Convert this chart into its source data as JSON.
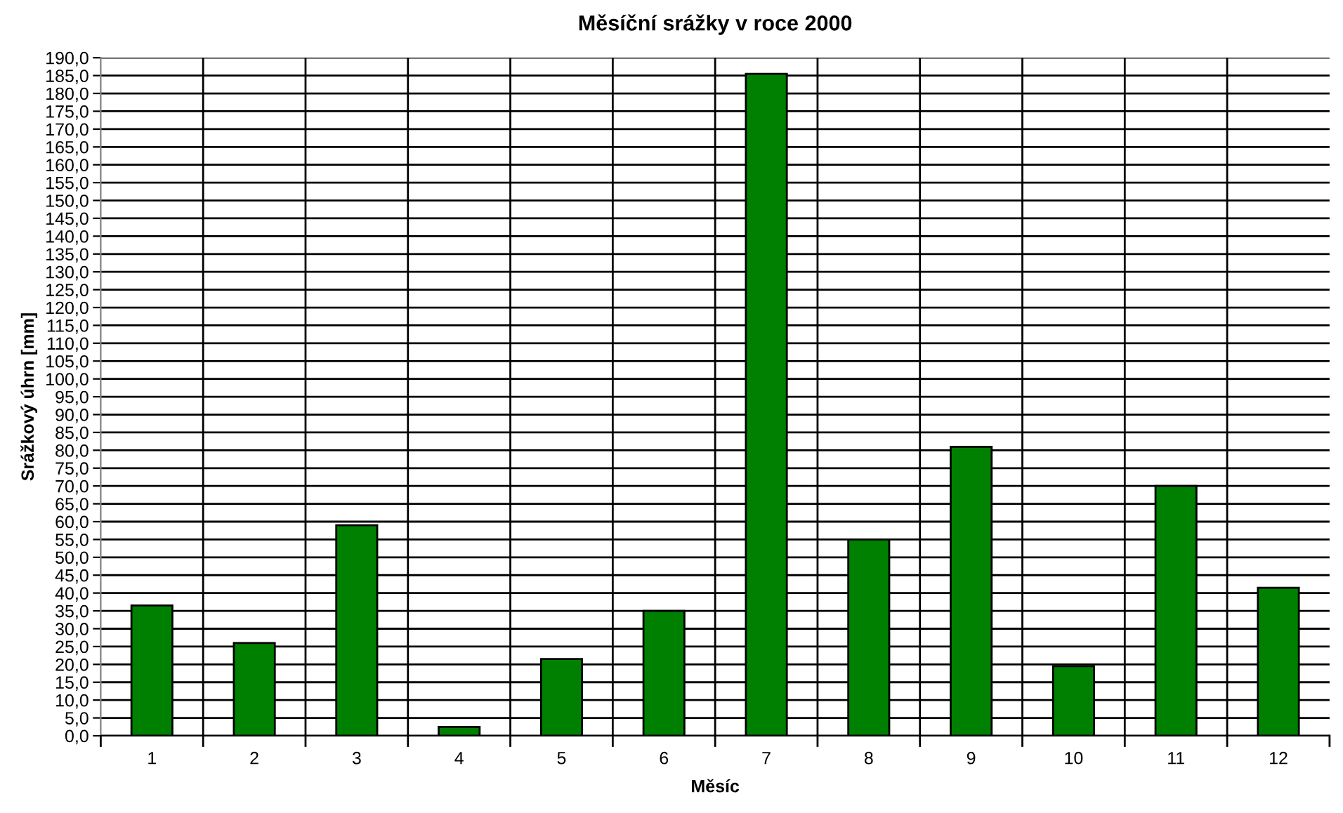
{
  "chart_data": {
    "type": "bar",
    "title": "Měsíční srážky v roce 2000",
    "xlabel": "Měsíc",
    "ylabel": "Srážkový úhrn [mm]",
    "categories": [
      "1",
      "2",
      "3",
      "4",
      "5",
      "6",
      "7",
      "8",
      "9",
      "10",
      "11",
      "12"
    ],
    "values": [
      36.5,
      26,
      59,
      2.5,
      21.5,
      35,
      185.5,
      55,
      81,
      19.5,
      70,
      41.5
    ],
    "color": "#008000",
    "ylim": [
      0,
      190
    ],
    "yticks": [
      {
        "value": 0,
        "label": "0,0"
      },
      {
        "value": 5,
        "label": "5,0"
      },
      {
        "value": 10,
        "label": "10,0"
      },
      {
        "value": 15,
        "label": "15,0"
      },
      {
        "value": 20,
        "label": "20,0"
      },
      {
        "value": 25,
        "label": "25,0"
      },
      {
        "value": 30,
        "label": "30,0"
      },
      {
        "value": 35,
        "label": "35,0"
      },
      {
        "value": 40,
        "label": "40,0"
      },
      {
        "value": 45,
        "label": "45,0"
      },
      {
        "value": 50,
        "label": "50,0"
      },
      {
        "value": 55,
        "label": "55,0"
      },
      {
        "value": 60,
        "label": "60,0"
      },
      {
        "value": 65,
        "label": "65,0"
      },
      {
        "value": 70,
        "label": "70,0"
      },
      {
        "value": 75,
        "label": "75,0"
      },
      {
        "value": 80,
        "label": "80,0"
      },
      {
        "value": 85,
        "label": "85,0"
      },
      {
        "value": 90,
        "label": "90,0"
      },
      {
        "value": 95,
        "label": "95,0"
      },
      {
        "value": 100,
        "label": "100,0"
      },
      {
        "value": 105,
        "label": "105,0"
      },
      {
        "value": 110,
        "label": "110,0"
      },
      {
        "value": 115,
        "label": "115,0"
      },
      {
        "value": 120,
        "label": "120,0"
      },
      {
        "value": 125,
        "label": "125,0"
      },
      {
        "value": 130,
        "label": "130,0"
      },
      {
        "value": 135,
        "label": "135,0"
      },
      {
        "value": 140,
        "label": "140,0"
      },
      {
        "value": 145,
        "label": "145,0"
      },
      {
        "value": 150,
        "label": "150,0"
      },
      {
        "value": 155,
        "label": "155,0"
      },
      {
        "value": 160,
        "label": "160,0"
      },
      {
        "value": 165,
        "label": "165,0"
      },
      {
        "value": 170,
        "label": "170,0"
      },
      {
        "value": 175,
        "label": "175,0"
      },
      {
        "value": 180,
        "label": "180,0"
      },
      {
        "value": 185,
        "label": "185,0"
      },
      {
        "value": 190,
        "label": "190,0"
      }
    ],
    "grid": true,
    "legend": false
  }
}
